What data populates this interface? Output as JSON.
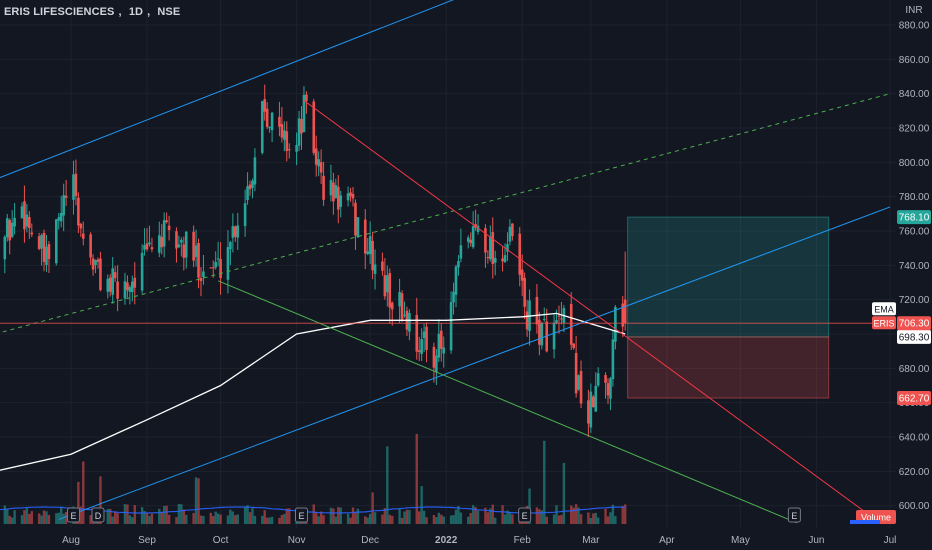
{
  "header": {
    "symbol": "ERIS LIFESCIENCES",
    "interval": "1D",
    "exchange": "NSE"
  },
  "colors": {
    "background": "#131722",
    "up": "#26a69a",
    "down": "#ef5350",
    "ema": "#ffffff",
    "channel": "#2196f3",
    "resistance": "#f23645",
    "support": "#4caf50",
    "dashed": "#4caf50",
    "grid": "#1e222d"
  },
  "chart_data": {
    "type": "candlestick",
    "currency": "INR",
    "y_ticks": [
      "880.00",
      "860.00",
      "840.00",
      "820.00",
      "800.00",
      "780.00",
      "760.00",
      "740.00",
      "720.00",
      "700.00",
      "680.00",
      "660.00",
      "640.00",
      "620.00",
      "600.00"
    ],
    "ylim": [
      590,
      893
    ],
    "x_ticks": [
      "Aug",
      "Sep",
      "Oct",
      "Nov",
      "Dec",
      "2022",
      "Feb",
      "Mar",
      "Apr",
      "May",
      "Jun",
      "Jul"
    ],
    "x_tick_dates": [
      "2021-08-01",
      "2021-09-01",
      "2021-10-01",
      "2021-11-01",
      "2021-12-01",
      "2022-01-01",
      "2022-02-01",
      "2022-03-01",
      "2022-04-01",
      "2022-05-01",
      "2022-06-01",
      "2022-07-01"
    ],
    "price_path": [
      {
        "date": "2021-07-01",
        "close": 745
      },
      {
        "date": "2021-07-12",
        "close": 775
      },
      {
        "date": "2021-07-22",
        "close": 740
      },
      {
        "date": "2021-08-01",
        "close": 790
      },
      {
        "date": "2021-08-05",
        "close": 760
      },
      {
        "date": "2021-08-12",
        "close": 735
      },
      {
        "date": "2021-08-20",
        "close": 725
      },
      {
        "date": "2021-08-28",
        "close": 735
      },
      {
        "date": "2021-09-05",
        "close": 758
      },
      {
        "date": "2021-09-15",
        "close": 752
      },
      {
        "date": "2021-09-24",
        "close": 740
      },
      {
        "date": "2021-09-30",
        "close": 738
      },
      {
        "date": "2021-10-06",
        "close": 760
      },
      {
        "date": "2021-10-14",
        "close": 795
      },
      {
        "date": "2021-10-18",
        "close": 838
      },
      {
        "date": "2021-10-25",
        "close": 815
      },
      {
        "date": "2021-11-01",
        "close": 810
      },
      {
        "date": "2021-11-04",
        "close": 832
      },
      {
        "date": "2021-11-12",
        "close": 785
      },
      {
        "date": "2021-11-22",
        "close": 775
      },
      {
        "date": "2021-11-30",
        "close": 750
      },
      {
        "date": "2021-12-08",
        "close": 725
      },
      {
        "date": "2021-12-15",
        "close": 712
      },
      {
        "date": "2021-12-22",
        "close": 693
      },
      {
        "date": "2021-12-31",
        "close": 690
      },
      {
        "date": "2022-01-07",
        "close": 745
      },
      {
        "date": "2022-01-14",
        "close": 765
      },
      {
        "date": "2022-01-21",
        "close": 745
      },
      {
        "date": "2022-01-28",
        "close": 755
      },
      {
        "date": "2022-02-03",
        "close": 710
      },
      {
        "date": "2022-02-10",
        "close": 700
      },
      {
        "date": "2022-02-18",
        "close": 705
      },
      {
        "date": "2022-02-24",
        "close": 670
      },
      {
        "date": "2022-02-28",
        "close": 650
      },
      {
        "date": "2022-03-04",
        "close": 672
      },
      {
        "date": "2022-03-08",
        "close": 665
      },
      {
        "date": "2022-03-11",
        "close": 720
      },
      {
        "date": "2022-03-14",
        "close": 712
      },
      {
        "date": "2022-03-15",
        "close": 706.3
      }
    ],
    "ema_path": [
      {
        "date": "2021-07-01",
        "value": 620
      },
      {
        "date": "2021-08-01",
        "value": 630
      },
      {
        "date": "2021-09-01",
        "value": 650
      },
      {
        "date": "2021-10-01",
        "value": 670
      },
      {
        "date": "2021-11-01",
        "value": 700
      },
      {
        "date": "2021-12-01",
        "value": 708
      },
      {
        "date": "2022-01-01",
        "value": 708
      },
      {
        "date": "2022-02-01",
        "value": 710
      },
      {
        "date": "2022-02-15",
        "value": 712
      },
      {
        "date": "2022-03-01",
        "value": 706
      },
      {
        "date": "2022-03-15",
        "value": 700
      }
    ],
    "drawings": [
      {
        "name": "channel-upper",
        "color": "#2196f3",
        "style": "solid",
        "from": {
          "date": "2021-07-01",
          "price": 790
        },
        "to": {
          "date": "2022-01-08",
          "price": 897
        }
      },
      {
        "name": "channel-mid",
        "color": "#4caf50",
        "style": "dashed",
        "from": {
          "date": "2021-07-01",
          "price": 700
        },
        "to": {
          "date": "2022-07-01",
          "price": 840
        }
      },
      {
        "name": "channel-lower",
        "color": "#2196f3",
        "style": "solid",
        "from": {
          "date": "2021-07-27",
          "price": 592
        },
        "to": {
          "date": "2022-07-01",
          "price": 774
        }
      },
      {
        "name": "resistance-trendline",
        "color": "#f23645",
        "style": "solid",
        "from": {
          "date": "2021-11-04",
          "price": 836
        },
        "to": {
          "date": "2022-06-25",
          "price": 592
        }
      },
      {
        "name": "support-trendline",
        "color": "#4caf50",
        "style": "solid",
        "from": {
          "date": "2021-09-30",
          "price": 731
        },
        "to": {
          "date": "2022-05-24",
          "price": 590
        }
      }
    ],
    "position": {
      "type": "long",
      "entry": 698.3,
      "target": 768.1,
      "stop": 662.7,
      "start": "2022-03-16",
      "end": "2022-06-06"
    },
    "volume_events": [
      {
        "date": "2021-08-02",
        "label": "E"
      },
      {
        "date": "2021-08-12",
        "label": "D"
      },
      {
        "date": "2021-11-03",
        "label": "E"
      },
      {
        "date": "2022-02-02",
        "label": "E"
      },
      {
        "date": "2022-05-23",
        "label": "E"
      }
    ],
    "current_price": 706.3
  },
  "price_tags": {
    "target": "768.10",
    "current": "706.30",
    "entry": "698.30",
    "stop": "662.70"
  },
  "legend": {
    "ema": "EMA",
    "symbol": "ERIS",
    "volume": "Volume"
  }
}
